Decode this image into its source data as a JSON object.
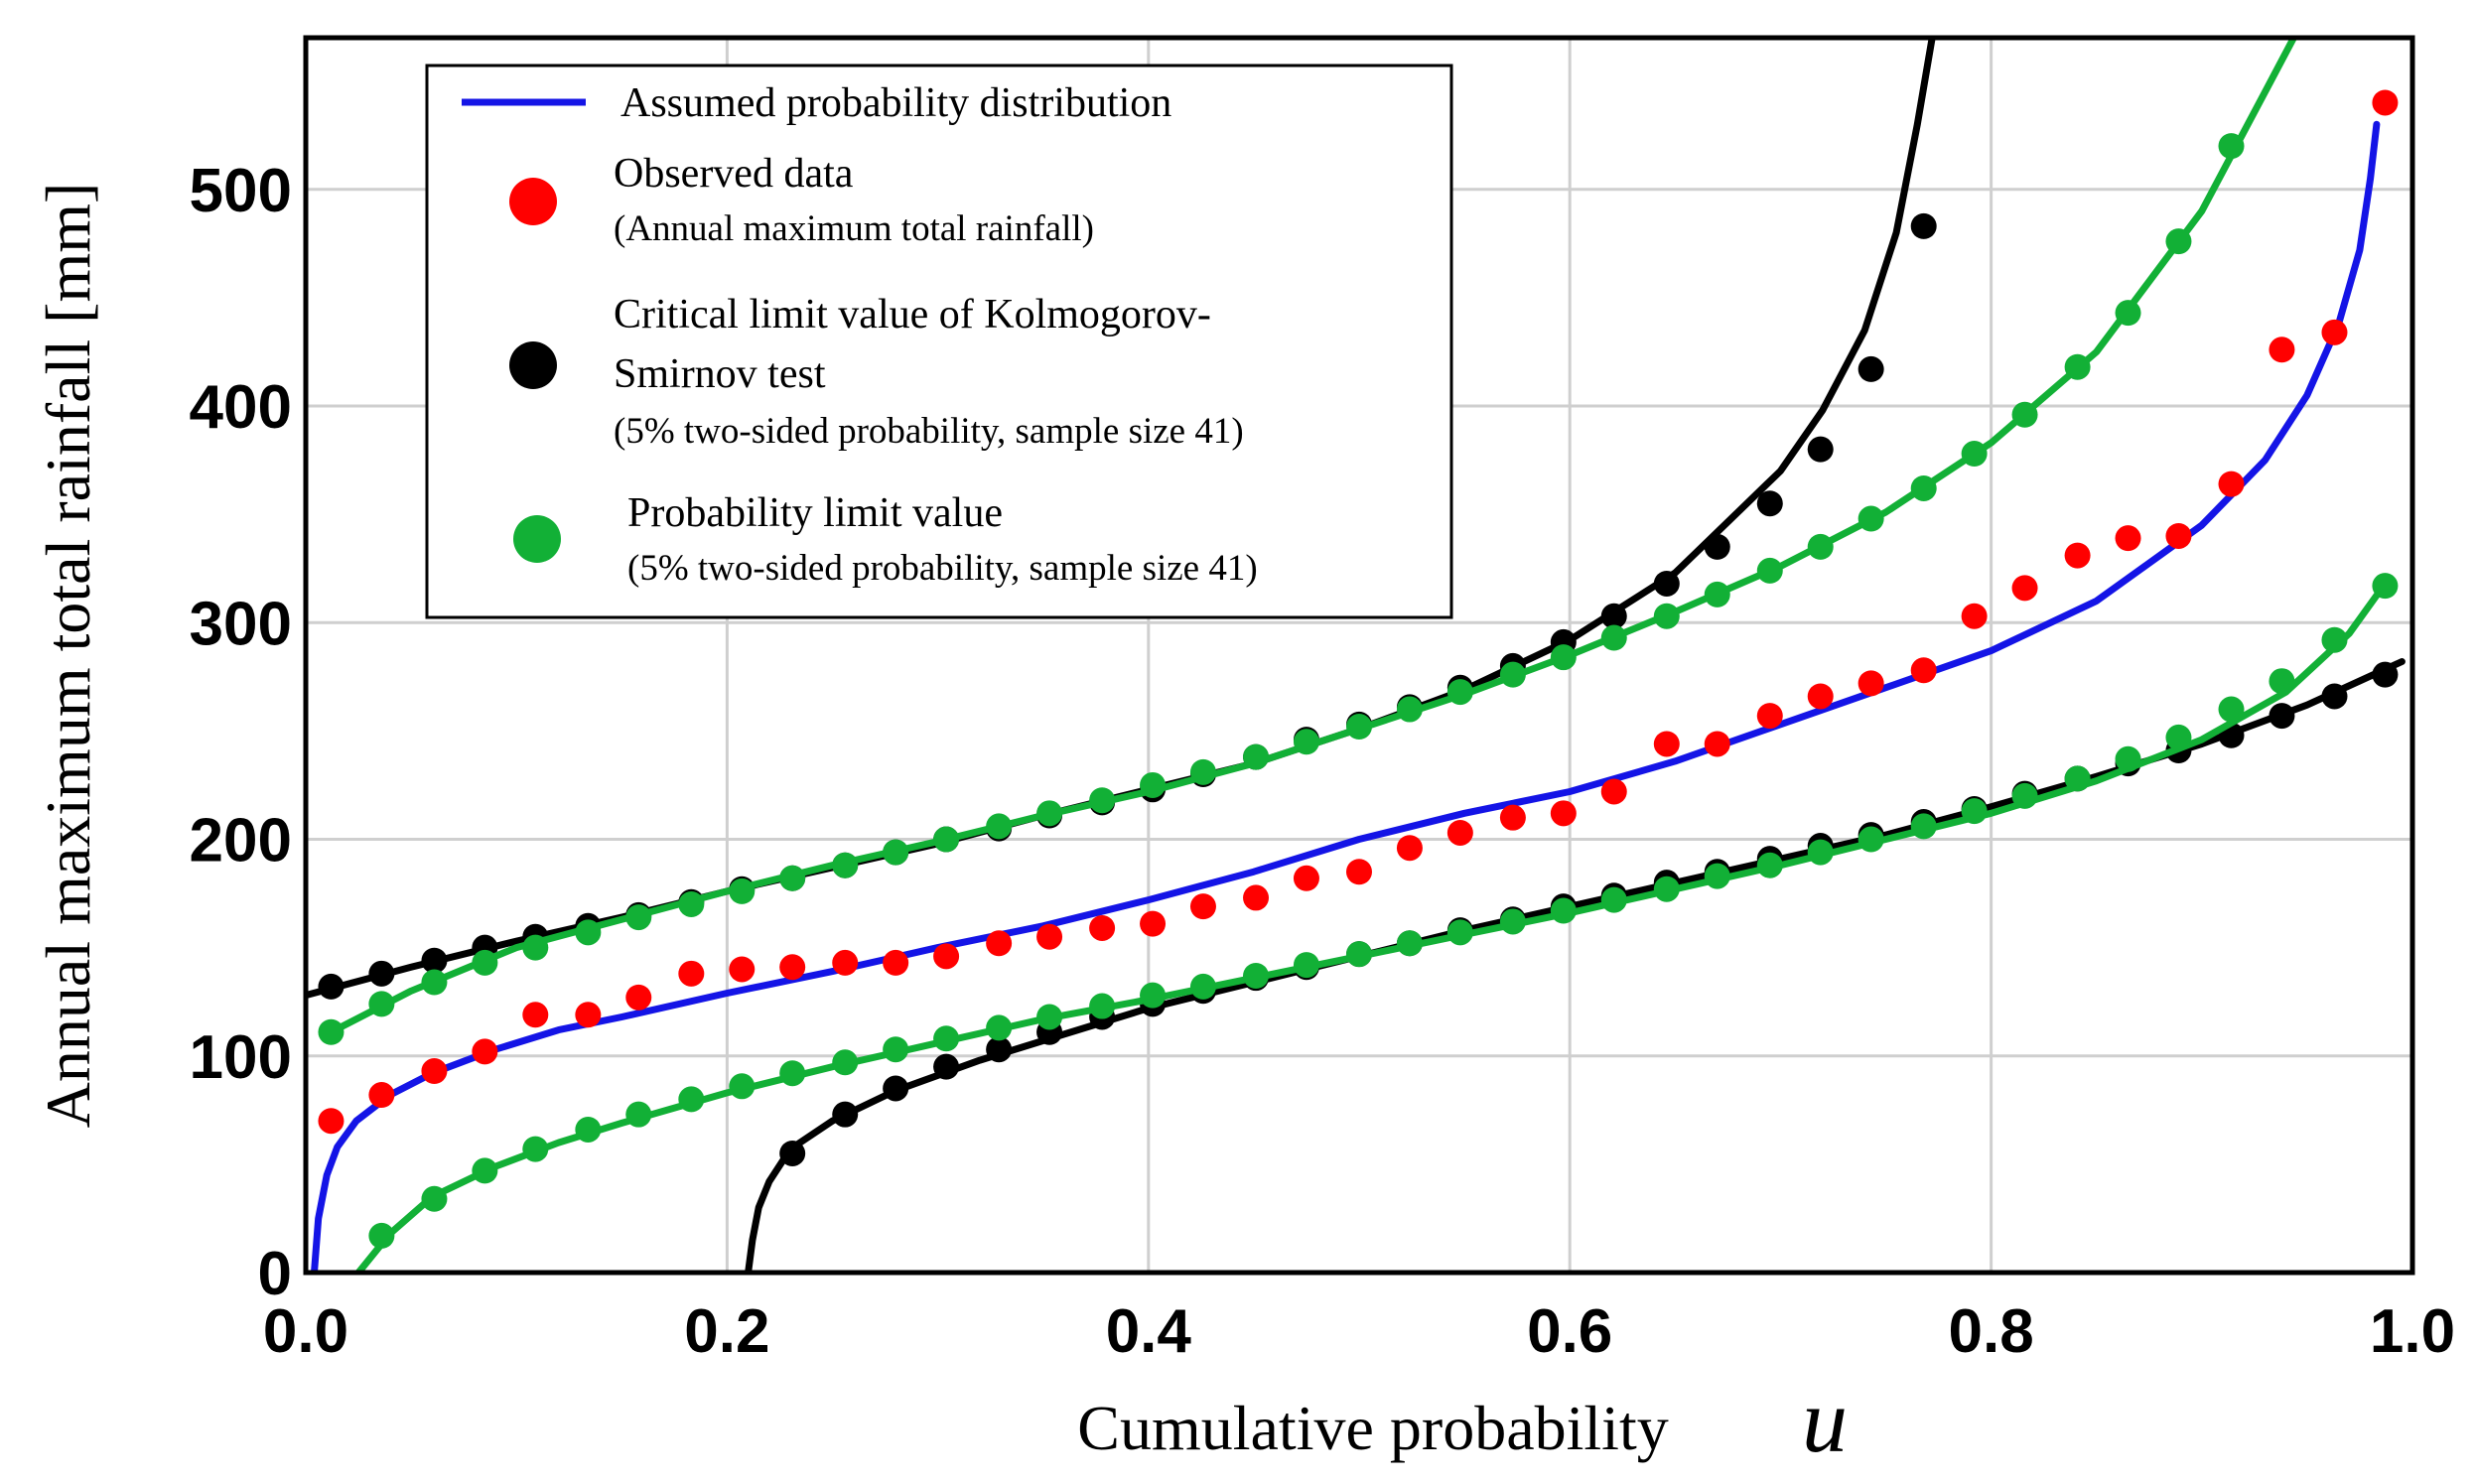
{
  "chart_data": {
    "type": "line",
    "title": "",
    "xlabel": "Cumulative probability",
    "xlabel_symbol": "u",
    "ylabel": "Annual maximum total rainfall [mm]",
    "xlim": [
      0.0,
      1.0
    ],
    "ylim": [
      0,
      570
    ],
    "xticks": [
      0.0,
      0.2,
      0.4,
      0.6,
      0.8,
      1.0
    ],
    "xtick_labels": [
      "0.0",
      "0.2",
      "0.4",
      "0.6",
      "0.8",
      "1.0"
    ],
    "yticks": [
      0,
      100,
      200,
      300,
      400,
      500
    ],
    "ytick_labels": [
      "0",
      "100",
      "200",
      "300",
      "400",
      "500"
    ],
    "grid": true,
    "legend_position": "top-left",
    "legend": [
      {
        "label": "Assumed probability distribution",
        "sublabel": "",
        "marker": "line",
        "color": "#1414e6"
      },
      {
        "label": "Observed data",
        "sublabel": "(Annual maximum total rainfall)",
        "marker": "dot",
        "color": "#ff0000"
      },
      {
        "label": "Critical limit value of Kolmogorov-",
        "label2": "Smirnov test",
        "sublabel": "(5% two-sided probability, sample size 41)",
        "marker": "dot",
        "color": "#000000"
      },
      {
        "label": "Probability limit value",
        "sublabel": "(5% two-sided probability, sample size 41)",
        "marker": "dot",
        "color": "#12b036"
      }
    ],
    "series": [
      {
        "name": "Assumed probability distribution",
        "kind": "line",
        "color": "#1414e6",
        "x": [
          0.004,
          0.006,
          0.01,
          0.015,
          0.024,
          0.04,
          0.06,
          0.09,
          0.12,
          0.15,
          0.2,
          0.25,
          0.3,
          0.35,
          0.4,
          0.45,
          0.5,
          0.55,
          0.6,
          0.65,
          0.7,
          0.75,
          0.8,
          0.85,
          0.9,
          0.93,
          0.95,
          0.965,
          0.975,
          0.98,
          0.983
        ],
        "y": [
          0,
          25,
          45,
          58,
          70,
          82,
          92,
          103,
          112,
          118,
          129,
          139,
          150,
          160,
          172,
          185,
          200,
          212,
          222,
          236,
          253,
          270,
          287,
          310,
          345,
          375,
          405,
          438,
          472,
          505,
          530
        ]
      },
      {
        "name": "Observed data",
        "kind": "scatter",
        "color": "#ff0000",
        "x": [
          0.012,
          0.036,
          0.061,
          0.085,
          0.109,
          0.134,
          0.158,
          0.183,
          0.207,
          0.231,
          0.256,
          0.28,
          0.304,
          0.329,
          0.353,
          0.378,
          0.402,
          0.426,
          0.451,
          0.475,
          0.5,
          0.524,
          0.548,
          0.573,
          0.597,
          0.621,
          0.646,
          0.67,
          0.695,
          0.719,
          0.743,
          0.768,
          0.792,
          0.816,
          0.841,
          0.865,
          0.889,
          0.914,
          0.938,
          0.963,
          0.987
        ],
        "y": [
          70,
          82,
          93,
          102,
          119,
          119,
          127,
          138,
          140,
          141,
          143,
          143,
          146,
          152,
          155,
          159,
          161,
          169,
          173,
          182,
          185,
          196,
          203,
          210,
          212,
          222,
          244,
          244,
          257,
          266,
          272,
          278,
          303,
          316,
          331,
          339,
          340,
          364,
          426,
          434,
          540
        ]
      },
      {
        "name": "Critical limit value of Kolmogorov-Smirnov test (upper)",
        "kind": "line+dots",
        "color": "#000000",
        "x": [
          0.0,
          0.05,
          0.1,
          0.15,
          0.2,
          0.25,
          0.3,
          0.35,
          0.4,
          0.45,
          0.5,
          0.55,
          0.6,
          0.65,
          0.7,
          0.72,
          0.74,
          0.755,
          0.765,
          0.772
        ],
        "y": [
          128,
          141,
          153,
          164,
          176,
          187,
          198,
          211,
          223,
          235,
          251,
          269,
          292,
          323,
          370,
          398,
          435,
          480,
          530,
          570
        ],
        "dots_x": [
          0.012,
          0.036,
          0.061,
          0.085,
          0.109,
          0.134,
          0.158,
          0.183,
          0.207,
          0.231,
          0.256,
          0.28,
          0.304,
          0.329,
          0.353,
          0.378,
          0.402,
          0.426,
          0.451,
          0.475,
          0.5,
          0.524,
          0.548,
          0.573,
          0.597,
          0.621,
          0.646,
          0.67,
          0.695,
          0.719,
          0.743,
          0.768
        ],
        "dots_y": [
          132,
          138,
          144,
          150,
          155,
          160,
          165,
          171,
          177,
          182,
          188,
          194,
          200,
          205,
          211,
          217,
          223,
          230,
          238,
          246,
          253,
          261,
          270,
          280,
          291,
          303,
          318,
          335,
          355,
          380,
          417,
          483
        ]
      },
      {
        "name": "Critical limit value of Kolmogorov-Smirnov test (lower)",
        "kind": "line+dots",
        "color": "#000000",
        "x": [
          0.21,
          0.212,
          0.215,
          0.22,
          0.23,
          0.25,
          0.28,
          0.32,
          0.36,
          0.4,
          0.45,
          0.5,
          0.55,
          0.6,
          0.65,
          0.7,
          0.75,
          0.8,
          0.85,
          0.9,
          0.95,
          0.995
        ],
        "y": [
          0,
          15,
          30,
          42,
          57,
          70,
          84,
          98,
          110,
          122,
          134,
          146,
          158,
          169,
          180,
          191,
          202,
          215,
          229,
          244,
          262,
          282
        ],
        "dots_x": [
          0.231,
          0.256,
          0.28,
          0.304,
          0.329,
          0.353,
          0.378,
          0.402,
          0.426,
          0.451,
          0.475,
          0.5,
          0.524,
          0.548,
          0.573,
          0.597,
          0.621,
          0.646,
          0.67,
          0.695,
          0.719,
          0.743,
          0.768,
          0.792,
          0.816,
          0.841,
          0.865,
          0.889,
          0.914,
          0.938,
          0.963,
          0.987
        ],
        "dots_y": [
          55,
          73,
          85,
          95,
          103,
          111,
          118,
          124,
          130,
          136,
          141,
          147,
          152,
          158,
          163,
          169,
          174,
          180,
          185,
          191,
          197,
          202,
          208,
          214,
          221,
          228,
          235,
          241,
          248,
          257,
          266,
          276
        ]
      },
      {
        "name": "Probability limit value (upper)",
        "kind": "line+dots",
        "color": "#12b036",
        "x": [
          0.012,
          0.05,
          0.1,
          0.15,
          0.2,
          0.25,
          0.3,
          0.35,
          0.4,
          0.45,
          0.5,
          0.55,
          0.6,
          0.65,
          0.7,
          0.75,
          0.8,
          0.85,
          0.9,
          0.93,
          0.96
        ],
        "y": [
          111,
          130,
          150,
          163,
          176,
          188,
          199,
          211,
          222,
          235,
          251,
          267,
          285,
          305,
          326,
          351,
          383,
          425,
          490,
          545,
          600
        ],
        "dots_x": [
          0.012,
          0.036,
          0.061,
          0.085,
          0.109,
          0.134,
          0.158,
          0.183,
          0.207,
          0.231,
          0.256,
          0.28,
          0.304,
          0.329,
          0.353,
          0.378,
          0.402,
          0.426,
          0.451,
          0.475,
          0.5,
          0.524,
          0.548,
          0.573,
          0.597,
          0.621,
          0.646,
          0.67,
          0.695,
          0.719,
          0.743,
          0.768,
          0.792,
          0.816,
          0.841,
          0.865,
          0.889,
          0.914
        ],
        "dots_y": [
          111,
          124,
          134,
          143,
          150,
          157,
          164,
          170,
          176,
          182,
          188,
          194,
          200,
          206,
          212,
          218,
          225,
          231,
          238,
          245,
          252,
          260,
          268,
          276,
          284,
          293,
          303,
          313,
          324,
          335,
          348,
          362,
          378,
          396,
          418,
          443,
          476,
          520
        ]
      },
      {
        "name": "Probability limit value (lower)",
        "kind": "line+dots",
        "color": "#12b036",
        "x": [
          0.025,
          0.04,
          0.06,
          0.09,
          0.12,
          0.15,
          0.2,
          0.25,
          0.3,
          0.35,
          0.4,
          0.45,
          0.5,
          0.55,
          0.6,
          0.65,
          0.7,
          0.75,
          0.8,
          0.85,
          0.9,
          0.94,
          0.97,
          0.987
        ],
        "y": [
          0,
          18,
          35,
          49,
          60,
          69,
          83,
          95,
          106,
          117,
          126,
          136,
          146,
          156,
          166,
          177,
          188,
          200,
          212,
          227,
          246,
          268,
          295,
          318
        ],
        "dots_x": [
          0.036,
          0.061,
          0.085,
          0.109,
          0.134,
          0.158,
          0.183,
          0.207,
          0.231,
          0.256,
          0.28,
          0.304,
          0.329,
          0.353,
          0.378,
          0.402,
          0.426,
          0.451,
          0.475,
          0.5,
          0.524,
          0.548,
          0.573,
          0.597,
          0.621,
          0.646,
          0.67,
          0.695,
          0.719,
          0.743,
          0.768,
          0.792,
          0.816,
          0.841,
          0.865,
          0.889,
          0.914,
          0.938,
          0.963,
          0.987
        ],
        "dots_y": [
          17,
          34,
          47,
          57,
          66,
          73,
          80,
          86,
          92,
          97,
          103,
          108,
          113,
          118,
          123,
          128,
          132,
          137,
          142,
          147,
          152,
          157,
          162,
          167,
          172,
          177,
          183,
          188,
          194,
          200,
          206,
          213,
          220,
          228,
          237,
          247,
          260,
          273,
          292,
          317
        ]
      }
    ]
  }
}
